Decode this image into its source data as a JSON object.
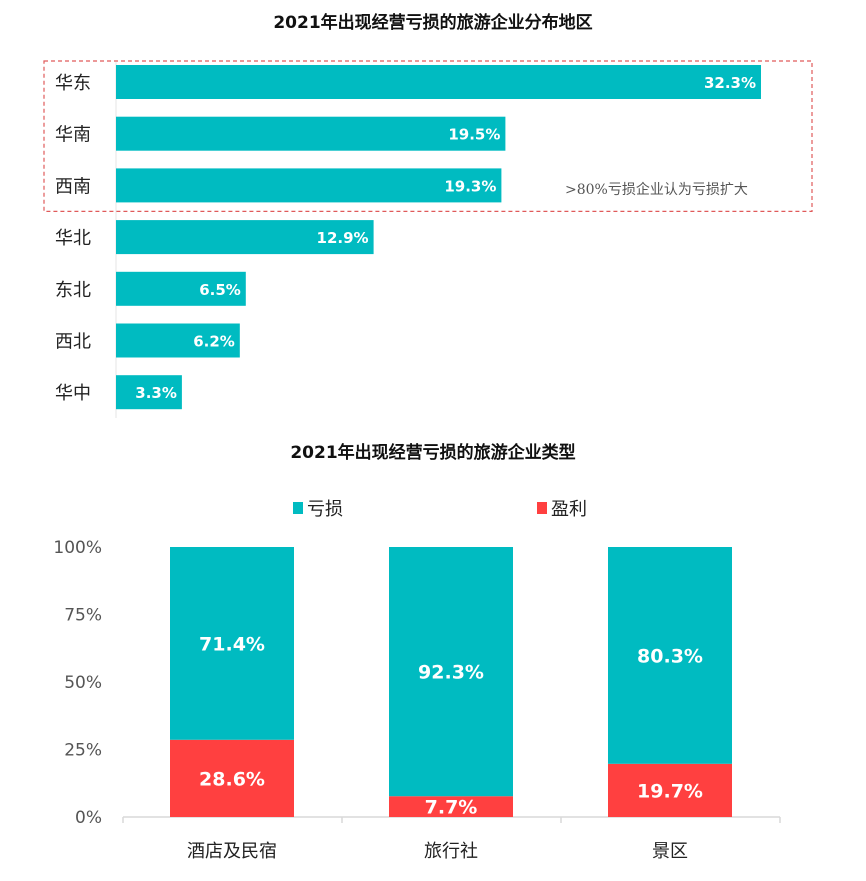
{
  "chart_data": [
    {
      "type": "bar",
      "orientation": "horizontal",
      "title": "2021年出现经营亏损的旅游企业分布地区",
      "categories": [
        "华东",
        "华南",
        "西南",
        "华北",
        "东北",
        "西北",
        "华中"
      ],
      "values": [
        32.3,
        19.5,
        19.3,
        12.9,
        6.5,
        6.2,
        3.3
      ],
      "data_labels": [
        "32.3%",
        "19.5%",
        "19.3%",
        "12.9%",
        "6.5%",
        "6.2%",
        "3.3%"
      ],
      "annotation": ">80%亏损企业认为亏损扩大",
      "highlighted_categories": [
        "华东",
        "华南",
        "西南"
      ],
      "colors": {
        "bar": "#00BBC1",
        "highlight_box": "#E05A5A"
      },
      "grid": false
    },
    {
      "type": "bar",
      "stacked": true,
      "title": "2021年出现经营亏损的旅游企业类型",
      "categories": [
        "酒店及民宿",
        "旅行社",
        "景区"
      ],
      "series": [
        {
          "name": "亏损",
          "values": [
            71.4,
            92.3,
            80.3
          ],
          "labels": [
            "71.4%",
            "92.3%",
            "80.3%"
          ],
          "color": "#00BBC1"
        },
        {
          "name": "盈利",
          "values": [
            28.6,
            7.7,
            19.7
          ],
          "labels": [
            "28.6%",
            "7.7%",
            "19.7%"
          ],
          "color": "#FF4040"
        }
      ],
      "ylim": [
        0,
        100
      ],
      "yticks": [
        "0%",
        "25%",
        "50%",
        "75%",
        "100%"
      ],
      "legend": "top",
      "grid": false
    }
  ]
}
